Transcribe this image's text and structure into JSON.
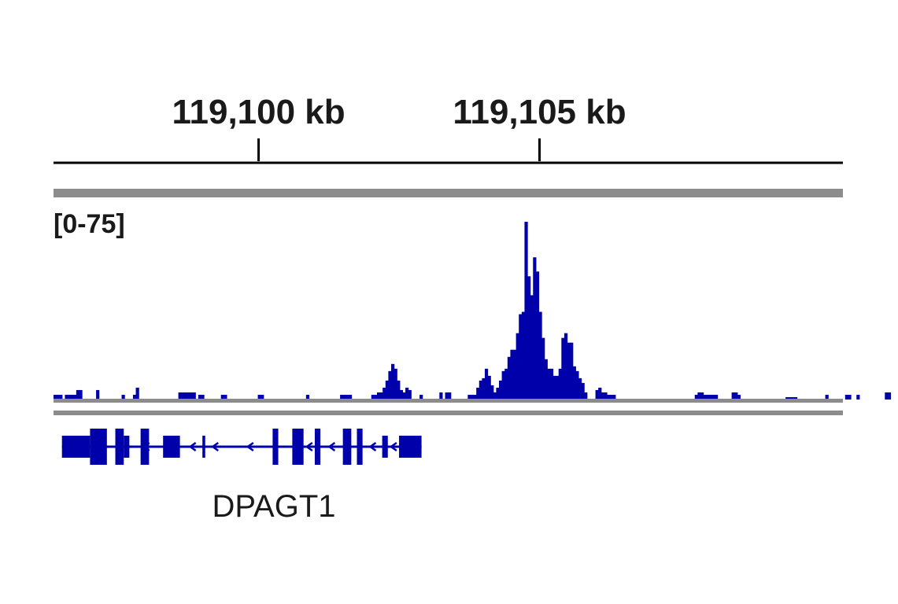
{
  "colors": {
    "signal": "#0000AA",
    "gene": "#0000AA",
    "divider": "#8c8c8c",
    "axis": "#000000",
    "text": "#1a1a1a"
  },
  "chart_data": {
    "type": "area",
    "ruler": {
      "ticks": [
        {
          "position_kb": 119100,
          "label": "119,100 kb"
        },
        {
          "position_kb": 119105,
          "label": "119,105 kb"
        }
      ],
      "xlim_kb": [
        119096.35,
        119110.4
      ]
    },
    "track": {
      "range_label": "[0-75]",
      "ylim": [
        0,
        75
      ],
      "bins_start_kb": 119096.35,
      "bin_width_kb": 0.0505,
      "values": [
        2,
        2,
        2,
        0,
        2,
        2,
        2,
        2,
        4,
        4,
        0,
        0,
        0,
        0,
        0,
        4,
        0,
        0,
        0,
        0,
        0,
        0,
        0,
        0,
        2,
        0,
        0,
        0,
        2,
        5,
        0,
        0,
        0,
        0,
        0,
        0,
        0,
        0,
        0,
        0,
        0,
        0,
        0,
        0,
        3,
        3,
        3,
        3,
        3,
        3,
        0,
        2,
        2,
        0,
        0,
        0,
        0,
        0,
        0,
        2,
        2,
        0,
        0,
        0,
        0,
        0,
        0,
        0,
        0,
        0,
        0,
        0,
        2,
        2,
        0,
        0,
        0,
        0,
        0,
        0,
        0,
        0,
        0,
        0,
        0,
        0,
        0,
        0,
        0,
        2,
        0,
        0,
        0,
        0,
        0,
        0,
        0,
        0,
        0,
        0,
        0,
        2,
        2,
        2,
        2,
        0,
        0,
        0,
        0,
        0,
        0,
        0,
        2,
        2,
        3,
        3,
        5,
        8,
        12,
        15,
        13,
        8,
        4,
        3,
        5,
        4,
        0,
        0,
        0,
        2,
        0,
        0,
        0,
        0,
        0,
        0,
        3,
        0,
        3,
        3,
        0,
        0,
        0,
        0,
        0,
        0,
        2,
        2,
        2,
        5,
        8,
        9,
        13,
        10,
        6,
        3,
        5,
        8,
        12,
        13,
        18,
        21,
        21,
        28,
        36,
        37,
        75,
        52,
        44,
        60,
        54,
        37,
        26,
        17,
        13,
        13,
        10,
        10,
        13,
        26,
        28,
        24,
        24,
        14,
        12,
        9,
        7,
        3,
        0,
        0,
        0,
        4,
        5,
        3,
        3,
        2,
        2,
        2,
        0,
        0,
        0,
        0,
        0,
        0,
        0,
        0,
        0,
        0,
        0,
        0,
        0,
        0,
        0,
        0,
        0,
        0,
        0,
        0,
        0,
        0,
        0,
        0,
        0,
        0,
        0,
        0,
        2,
        3,
        3,
        2,
        2,
        2,
        2,
        2,
        0,
        0,
        0,
        0,
        0,
        3,
        3,
        2,
        0,
        0,
        0,
        0,
        0,
        0,
        0,
        0,
        0,
        0,
        0,
        0,
        0,
        0,
        0,
        0,
        1,
        1,
        1,
        1,
        0,
        0,
        0,
        0,
        0,
        0,
        0,
        0,
        0,
        0,
        2,
        0,
        0,
        0,
        0,
        0,
        0,
        2,
        2,
        0,
        0,
        2,
        0,
        0,
        0,
        0,
        0,
        0,
        0,
        0,
        0,
        3,
        3
      ]
    },
    "gene": {
      "name": "DPAGT1",
      "line": [
        119096.5,
        119102.9
      ],
      "utr": [
        [
          119096.5,
          119097.0
        ],
        [
          119097.6,
          119097.7
        ],
        [
          119098.3,
          119098.6
        ],
        [
          119099.0,
          119099.05
        ],
        [
          119102.2,
          119102.3
        ],
        [
          119102.5,
          119102.9
        ]
      ],
      "exons": [
        [
          119097.0,
          119097.3
        ],
        [
          119097.45,
          119097.6
        ],
        [
          119097.9,
          119098.05
        ],
        [
          119100.25,
          119100.35
        ],
        [
          119100.6,
          119100.8
        ],
        [
          119101.0,
          119101.1
        ],
        [
          119101.5,
          119101.65
        ],
        [
          119101.75,
          119101.85
        ]
      ],
      "arrows": [
        [
          119097.73,
          119098.27
        ],
        [
          119098.65,
          119099.0
        ],
        [
          119099.1,
          119099.35
        ],
        [
          119099.5,
          119100.2
        ],
        [
          119100.82,
          119100.98
        ],
        [
          119101.12,
          119101.48
        ],
        [
          119101.88,
          119102.18
        ],
        [
          119102.32,
          119102.48
        ]
      ]
    }
  }
}
